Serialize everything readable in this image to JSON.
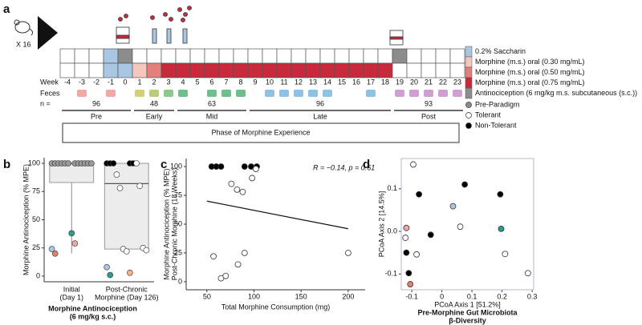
{
  "figure": {
    "panels": [
      "a",
      "b",
      "c",
      "d"
    ]
  },
  "timeline": {
    "cohort": "X 16",
    "week_label": "Week",
    "feces_label": "Feces",
    "n_label": "n =",
    "weeks": [
      -4,
      -3,
      -2,
      -1,
      0,
      1,
      2,
      3,
      4,
      5,
      6,
      7,
      8,
      9,
      10,
      11,
      12,
      13,
      14,
      15,
      16,
      17,
      18,
      19,
      20,
      21,
      22,
      23
    ],
    "top_row": [
      "#ffffff",
      "#ffffff",
      "#ffffff",
      "#a9c7e3",
      "#8c8c8c",
      "#ffffff",
      "#ffffff",
      "#ffffff",
      "#ffffff",
      "#ffffff",
      "#ffffff",
      "#ffffff",
      "#ffffff",
      "#ffffff",
      "#ffffff",
      "#ffffff",
      "#ffffff",
      "#ffffff",
      "#ffffff",
      "#ffffff",
      "#ffffff",
      "#ffffff",
      "#ffffff",
      "#8c8c8c",
      "#ffffff",
      "#ffffff",
      "#ffffff",
      "#ffffff"
    ],
    "bottom_row": [
      "#ffffff",
      "#ffffff",
      "#ffffff",
      "#a9c7e3",
      "#a9c7e3",
      "#f5c6bd",
      "#e57f7b",
      "#c62a3b",
      "#c62a3b",
      "#c62a3b",
      "#c62a3b",
      "#c62a3b",
      "#c62a3b",
      "#c62a3b",
      "#c62a3b",
      "#c62a3b",
      "#c62a3b",
      "#c62a3b",
      "#c62a3b",
      "#c62a3b",
      "#c62a3b",
      "#c62a3b",
      "#c62a3b",
      "#ffffff",
      "#ffffff",
      "#ffffff",
      "#ffffff",
      "#ffffff"
    ],
    "feces": [
      null,
      "#f2a7a7",
      null,
      "#f2a7a7",
      null,
      "#d4cf7a",
      "#b9cc79",
      "#8cc98e",
      "#6fbf8c",
      null,
      "#6fbf8c",
      "#6fbf8c",
      "#6fbf8c",
      null,
      "#8fc1e3",
      "#8fc1e3",
      "#8fc1e3",
      "#8fc1e3",
      "#8fc1e3",
      null,
      null,
      "#8fc1e3",
      null,
      "#cf9fd2",
      "#cf9fd2",
      "#cf9fd2",
      "#cf9fd2",
      "#cf9fd2"
    ],
    "phases": [
      {
        "name": "Pre",
        "n": 96,
        "start": -4,
        "end": 0
      },
      {
        "name": "Early",
        "n": 48,
        "start": 1,
        "end": 3
      },
      {
        "name": "Mid",
        "n": 63,
        "start": 4,
        "end": 8
      },
      {
        "name": "Late",
        "n": 96,
        "start": 9,
        "end": 18
      },
      {
        "name": "Post",
        "n": 93,
        "start": 19,
        "end": 23
      }
    ],
    "phase_caption": "Phase of Morphine Experience",
    "legend": [
      {
        "label": "0.2% Saccharin",
        "color": "#a9c7e3"
      },
      {
        "label": "Morphine (m.s.) oral (0.30 mg/mL)",
        "color": "#f5c6bd"
      },
      {
        "label": "Morphine (m.s.) oral (0.50 mg/mL)",
        "color": "#e57f7b"
      },
      {
        "label": "Morphine (m.s.) oral (0.75 mg/mL)",
        "color": "#c62a3b"
      },
      {
        "label": "Antinociception (6 mg/kg m.s. subcutaneous (s.c.))",
        "color": "#8c8c8c"
      }
    ],
    "status_legend": [
      {
        "label": "Pre-Paradigm",
        "fill": "#8c8c8c"
      },
      {
        "label": "Tolerant",
        "fill": "#ffffff"
      },
      {
        "label": "Non-Tolerant",
        "fill": "#000000"
      }
    ]
  },
  "chart_data": [
    {
      "type": "box",
      "y_label": "Morphine Antinociception (% MPE)",
      "categories": [
        [
          "Initial",
          "(Day 1)"
        ],
        [
          "Post-Chronic",
          "Morphine (Day 126)"
        ]
      ],
      "x_label": [
        "Morphine Antinociception",
        "(6 mg/kg s.c.)"
      ],
      "ylim": [
        -5,
        105
      ],
      "yticks": [
        0,
        25,
        50,
        75,
        100
      ],
      "boxes": [
        {
          "low": 20,
          "q1": 83,
          "median": 100,
          "q3": 100,
          "high": 100,
          "points": [
            100,
            100,
            100,
            100,
            100,
            100,
            100,
            100,
            100,
            100,
            100,
            100,
            38,
            24,
            29,
            20
          ],
          "colors": [
            "#9a9a9a",
            "#9a9a9a",
            "#9a9a9a",
            "#9a9a9a",
            "#9a9a9a",
            "#9a9a9a",
            "#9a9a9a",
            "#9a9a9a",
            "#9a9a9a",
            "#9a9a9a",
            "#9a9a9a",
            "#9a9a9a",
            "#2a9d8f",
            "#a9c7e3",
            "#f2a7a7",
            "#e4806d"
          ]
        },
        {
          "low": 24,
          "q1": 24,
          "median": 82,
          "q3": 100,
          "high": 100,
          "points": [
            100,
            100,
            100,
            100,
            100,
            100,
            90,
            80,
            78,
            25,
            24,
            23,
            22,
            8,
            3,
            1
          ],
          "colors": [
            "#000000",
            "#000000",
            "#000000",
            "#000000",
            "#000000",
            "#ffffff",
            "#ffffff",
            "#ffffff",
            "#ffffff",
            "#ffffff",
            "#ffffff",
            "#ffffff",
            "#ffffff",
            "#a9c7e3",
            "#f5b48a",
            "#2a9d8f"
          ]
        }
      ]
    },
    {
      "type": "scatter",
      "y_label": [
        "Morphine Antinociception (% MPE)",
        "Post-Chronic Morphine (18 Weeks)"
      ],
      "x_label": "Total Morphine Consumption (mg)",
      "annotation": "R = −0.14, p = 0.61",
      "xlim": [
        28,
        218
      ],
      "xticks": [
        50,
        100,
        150,
        200
      ],
      "ylim": [
        -7,
        107
      ],
      "yticks": [
        0,
        25,
        50,
        75,
        100
      ],
      "x": [
        55,
        60,
        65,
        90,
        97,
        103,
        76,
        82,
        88,
        98,
        102,
        57,
        65,
        70,
        83,
        90,
        200
      ],
      "y": [
        100,
        100,
        100,
        100,
        100,
        100,
        85,
        80,
        78,
        90,
        98,
        22,
        3,
        5,
        15,
        25,
        25
      ],
      "colors": [
        "#000000",
        "#000000",
        "#000000",
        "#000000",
        "#000000",
        "#000000",
        "#ffffff",
        "#ffffff",
        "#ffffff",
        "#ffffff",
        "#ffffff",
        "#ffffff",
        "#ffffff",
        "#ffffff",
        "#ffffff",
        "#ffffff",
        "#ffffff"
      ],
      "trend": {
        "x": [
          50,
          200
        ],
        "y": [
          70,
          46
        ]
      }
    },
    {
      "type": "scatter",
      "x_label": "PCoA Axis 1  [51.2%]",
      "y_label": "PCoA Axis 2  [14.5%]",
      "title": [
        "Pre-Morphine Gut Microbiota",
        "β-Diversity"
      ],
      "xlim": [
        -0.135,
        0.305
      ],
      "xticks": [
        -0.1,
        0,
        0.1,
        0.2,
        0.3
      ],
      "ylim": [
        -0.137,
        0.171
      ],
      "yticks": [
        -0.1,
        {
          "value": 0,
          "label": "0.0"
        },
        0.1
      ],
      "x": [
        -0.095,
        -0.076,
        0.076,
        0.194,
        0.037,
        0.061,
        0.197,
        -0.118,
        -0.121,
        -0.037,
        -0.084,
        -0.118,
        0.21,
        0.286,
        -0.11,
        -0.105
      ],
      "y": [
        0.157,
        0.087,
        0.11,
        0.087,
        0.059,
        0.011,
        0.006,
        0.008,
        -0.015,
        -0.008,
        -0.054,
        -0.05,
        -0.053,
        -0.098,
        -0.098,
        -0.124
      ],
      "colors": [
        "#ffffff",
        "#000000",
        "#000000",
        "#000000",
        "#a9c7e3",
        "#ffffff",
        "#2a9d8f",
        "#f2a7a7",
        "#ffffff",
        "#000000",
        "#ffffff",
        "#000000",
        "#ffffff",
        "#ffffff",
        "#000000",
        "#e4806d"
      ]
    }
  ]
}
